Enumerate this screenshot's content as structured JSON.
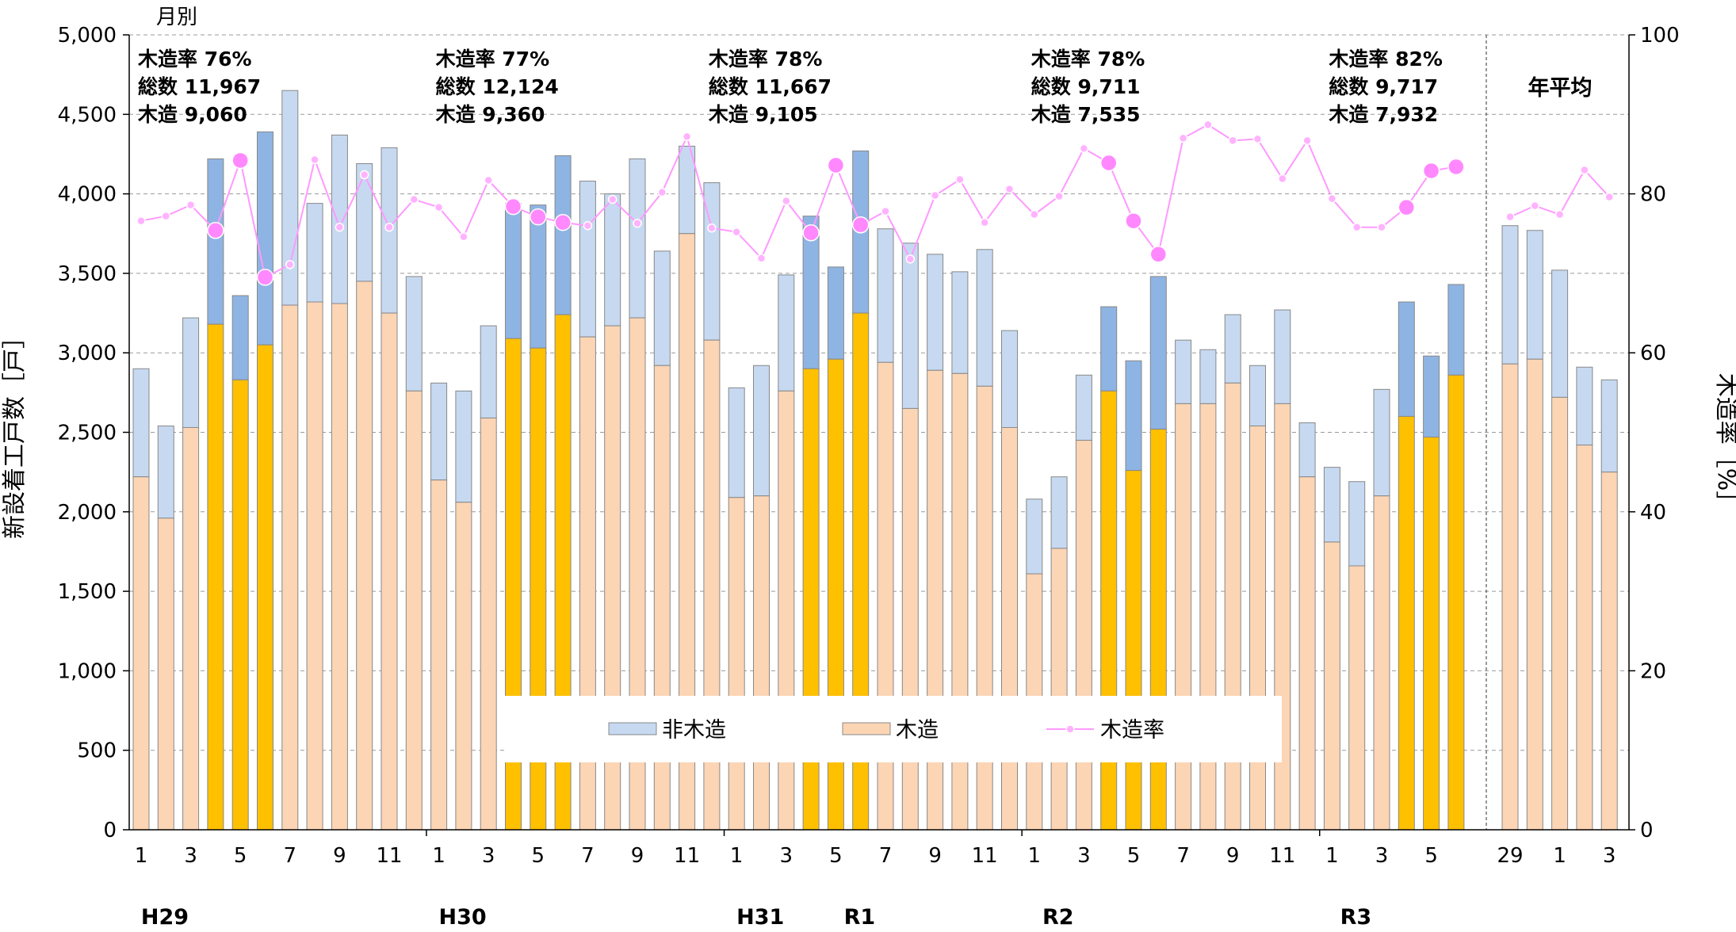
{
  "chart_data": {
    "type": "bar",
    "subtitle": "月別",
    "ylabel": "新設着工戸数［戸］",
    "y2label": "木造率［%］",
    "ylim": [
      0,
      5000
    ],
    "y2lim": [
      0,
      100
    ],
    "yticks": [
      "0",
      "500",
      "1,000",
      "1,500",
      "2,000",
      "2,500",
      "3,000",
      "3,500",
      "4,000",
      "4,500",
      "5,000"
    ],
    "y2ticks": [
      "0",
      "20",
      "40",
      "60",
      "80",
      "100"
    ],
    "grid": true,
    "legend_position": "bottom-center",
    "series_names": {
      "non_wood": "非木造",
      "wood": "木造",
      "rate": "木造率"
    },
    "annual_title": "年平均",
    "eras": [
      {
        "label": "H29",
        "index": 0
      },
      {
        "label": "H30",
        "index": 12
      },
      {
        "label": "H31",
        "index": 24
      },
      {
        "label": "R1",
        "index": 28
      },
      {
        "label": "R2",
        "index": 36
      },
      {
        "label": "R3",
        "index": 48
      }
    ],
    "summaries": [
      {
        "rate": "木造率  76%",
        "total": "総数  11,967",
        "wood": "木造   9,060",
        "index": 0
      },
      {
        "rate": "木造率  77%",
        "total": "総数  12,124",
        "wood": "木造   9,360",
        "index": 12
      },
      {
        "rate": "木造率  78%",
        "total": "総数  11,667",
        "wood": "木造   9,105",
        "index": 23
      },
      {
        "rate": "木造率  78%",
        "total": "総数   9,711",
        "wood": "木造   7,535",
        "index": 36
      },
      {
        "rate": "木造率  82%",
        "total": "総数   9,717",
        "wood": "木造   7,932",
        "index": 48
      }
    ],
    "monthly": {
      "x_labels": [
        "1",
        "",
        "3",
        "",
        "5",
        "",
        "7",
        "",
        "9",
        "",
        "11",
        "",
        "1",
        "",
        "3",
        "",
        "5",
        "",
        "7",
        "",
        "9",
        "",
        "11",
        "",
        "1",
        "",
        "3",
        "",
        "5",
        "",
        "7",
        "",
        "9",
        "",
        "11",
        "",
        "1",
        "",
        "3",
        "",
        "5",
        "",
        "7",
        "",
        "9",
        "",
        "11",
        "",
        "1",
        "",
        "3",
        "",
        "5",
        ""
      ],
      "total": [
        2900,
        2540,
        3220,
        4220,
        3360,
        4390,
        4650,
        3940,
        4370,
        4190,
        4290,
        3480,
        2810,
        2760,
        3170,
        3940,
        3930,
        4240,
        4080,
        4000,
        4220,
        3640,
        4300,
        4070,
        2780,
        2920,
        3490,
        3860,
        3540,
        4270,
        3780,
        3690,
        3620,
        3510,
        3650,
        3140,
        2080,
        2220,
        2860,
        3290,
        2950,
        3480,
        3080,
        3020,
        3240,
        2920,
        3270,
        2560,
        2280,
        2190,
        2770,
        3320,
        2980,
        3430
      ],
      "wood": [
        2220,
        1960,
        2530,
        3180,
        2830,
        3050,
        3300,
        3320,
        3310,
        3450,
        3250,
        2760,
        2200,
        2060,
        2590,
        3090,
        3030,
        3240,
        3100,
        3170,
        3220,
        2920,
        3750,
        3080,
        2090,
        2100,
        2760,
        2900,
        2960,
        3250,
        2940,
        2650,
        2890,
        2870,
        2790,
        2530,
        1610,
        1770,
        2450,
        2760,
        2260,
        2520,
        2680,
        2680,
        2810,
        2540,
        2680,
        2220,
        1810,
        1660,
        2100,
        2600,
        2470,
        2860
      ],
      "rate": [
        76.6,
        77.2,
        78.6,
        75.4,
        84.2,
        69.5,
        71.1,
        84.3,
        75.8,
        82.4,
        75.8,
        79.3,
        78.3,
        74.6,
        81.7,
        78.4,
        77.1,
        76.4,
        76.0,
        79.3,
        76.3,
        80.2,
        87.2,
        75.7,
        75.2,
        71.9,
        79.1,
        75.1,
        83.6,
        76.1,
        77.8,
        71.8,
        79.8,
        81.8,
        76.4,
        80.6,
        77.4,
        79.7,
        85.7,
        83.9,
        76.6,
        72.4,
        87.0,
        88.7,
        86.7,
        86.9,
        81.9,
        86.7,
        79.4,
        75.8,
        75.8,
        78.3,
        82.9,
        83.4
      ],
      "highlight": [
        false,
        false,
        false,
        true,
        true,
        true,
        false,
        false,
        false,
        false,
        false,
        false,
        false,
        false,
        false,
        true,
        true,
        true,
        false,
        false,
        false,
        false,
        false,
        false,
        false,
        false,
        false,
        true,
        true,
        true,
        false,
        false,
        false,
        false,
        false,
        false,
        false,
        false,
        false,
        true,
        true,
        true,
        false,
        false,
        false,
        false,
        false,
        false,
        false,
        false,
        false,
        true,
        true,
        true
      ]
    },
    "annual": {
      "x_labels": [
        "29",
        "",
        "1",
        "",
        "3"
      ],
      "total": [
        3800,
        3770,
        3520,
        2910,
        2830
      ],
      "wood": [
        2930,
        2960,
        2720,
        2420,
        2250
      ],
      "rate": [
        77.1,
        78.5,
        77.4,
        83.0,
        79.6
      ]
    },
    "colors": {
      "non_wood": "#c6d9f1",
      "non_wood_highlight": "#8eb4e3",
      "wood": "#fcd5b5",
      "wood_highlight": "#ffc000",
      "rate_line": "#ff99ff",
      "rate_marker": "#ffb3ff",
      "rate_marker_highlight": "#ff88ff",
      "grid": "#999999"
    }
  }
}
